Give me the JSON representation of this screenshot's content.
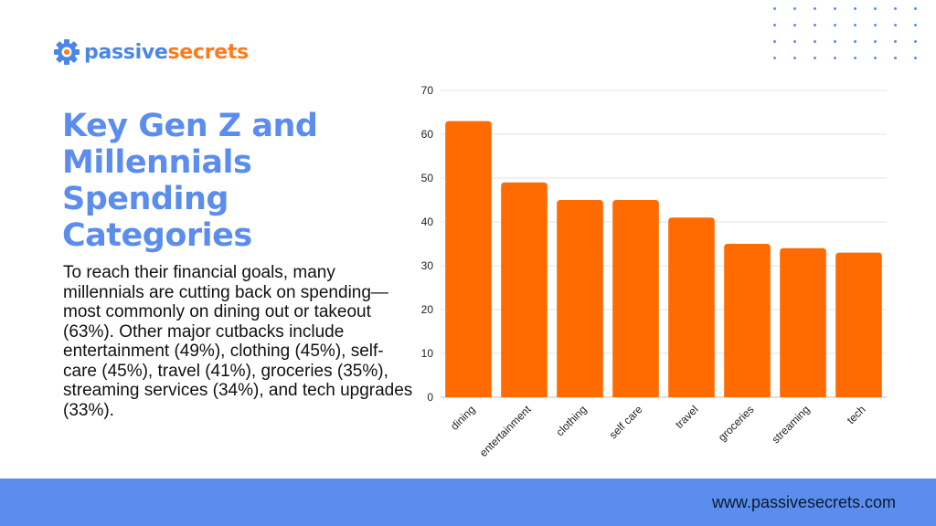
{
  "logo": {
    "part1": "passive",
    "part2": "secrets",
    "icon": "gear-icon",
    "colors": {
      "primary": "#4a86e8",
      "accent": "#ff7a1a"
    }
  },
  "title": "Key Gen Z and Millennials Spending Categories",
  "body": "To reach their financial goals, many millennials are cutting back on spending—most commonly on dining out or takeout (63%). Other major cutbacks include entertainment (49%), clothing (45%), self-care (45%), travel (41%), groceries (35%), streaming services (34%), and tech upgrades (33%).",
  "footer": {
    "url": "www.passivesecrets.com"
  },
  "colors": {
    "title": "#5b8def",
    "bar": "#ff6b00",
    "footer": "#5b8def"
  },
  "chart_data": {
    "type": "bar",
    "categories": [
      "dining",
      "entertainment",
      "clothing",
      "self care",
      "travel",
      "groceries",
      "streaming",
      "tech"
    ],
    "values": [
      63,
      49,
      45,
      45,
      41,
      35,
      34,
      33
    ],
    "ylim": [
      0,
      70
    ],
    "yticks": [
      0,
      10,
      20,
      30,
      40,
      50,
      60,
      70
    ],
    "grid": true,
    "title": "",
    "xlabel": "",
    "ylabel": ""
  }
}
